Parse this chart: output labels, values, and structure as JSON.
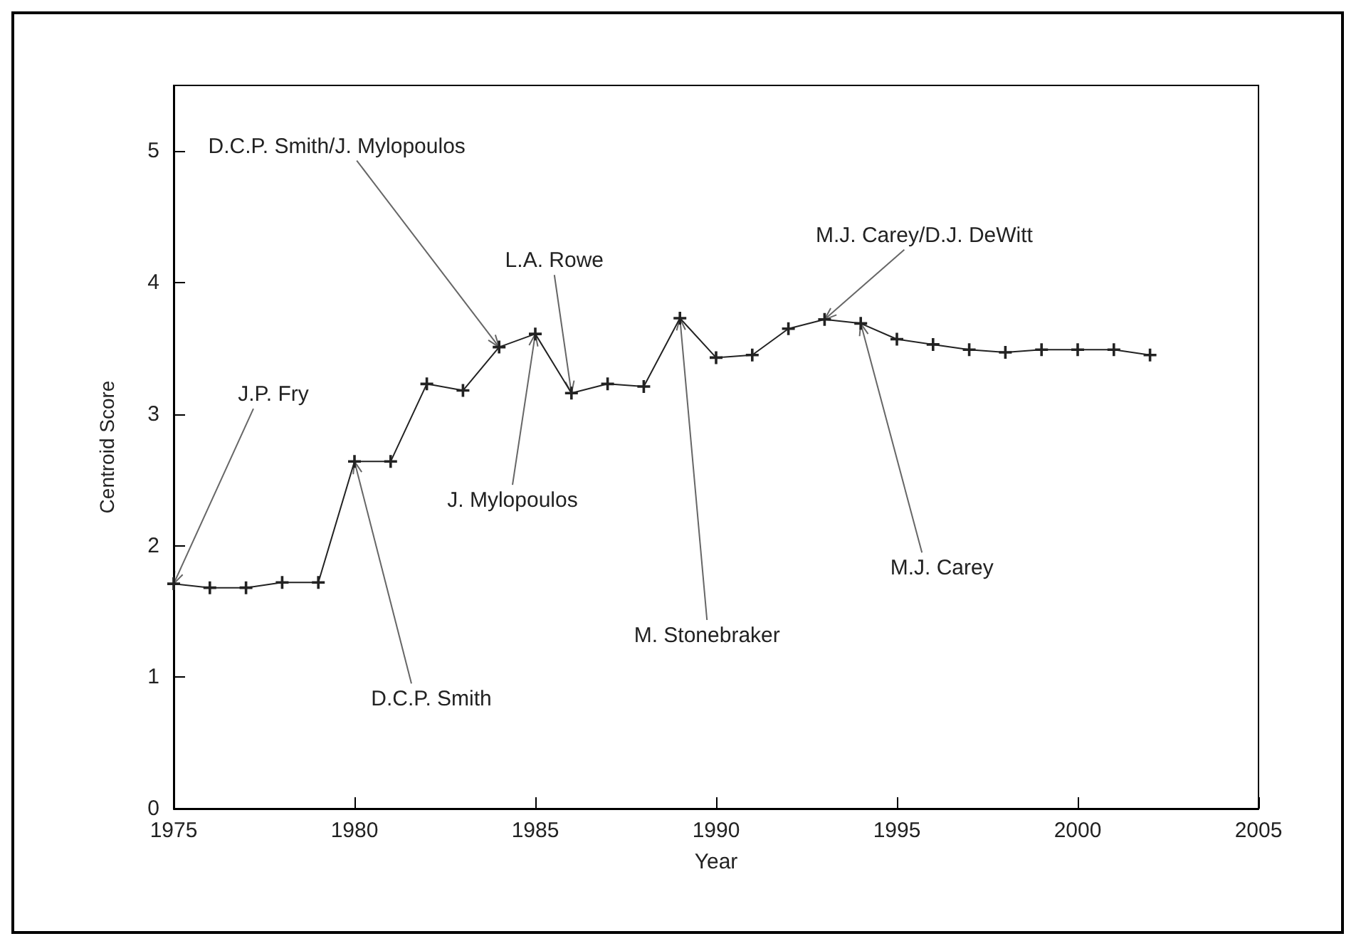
{
  "chart_data": {
    "type": "line",
    "xlabel": "Year",
    "ylabel": "Centroid Score",
    "x": [
      1975,
      1976,
      1977,
      1978,
      1979,
      1980,
      1981,
      1982,
      1983,
      1984,
      1985,
      1986,
      1987,
      1988,
      1989,
      1990,
      1991,
      1992,
      1993,
      1994,
      1995,
      1996,
      1997,
      1998,
      1999,
      2000,
      2001,
      2002
    ],
    "series": [
      {
        "color": "#222222",
        "values": [
          1.71,
          1.68,
          1.68,
          1.72,
          1.72,
          2.64,
          2.64,
          3.23,
          3.18,
          3.51,
          3.61,
          3.16,
          3.23,
          3.21,
          3.73,
          3.43,
          3.45,
          3.65,
          3.72,
          3.69,
          3.57,
          3.53,
          3.49,
          3.47,
          3.49,
          3.49,
          3.49,
          3.45
        ]
      }
    ],
    "xlim": [
      1975,
      2005
    ],
    "xticks": [
      1975,
      1980,
      1985,
      1990,
      1995,
      2000,
      2005
    ],
    "ylim": [
      0,
      5.5
    ],
    "yticks": [
      0,
      1,
      2,
      3,
      4,
      5
    ],
    "marker": "cross",
    "line_style": "solid",
    "annotations": [
      {
        "text": "J.P. Fry",
        "x": 1975,
        "y": 1.71
      },
      {
        "text": "D.C.P. Smith",
        "x": 1980,
        "y": 2.64
      },
      {
        "text": "D.C.P. Smith/J. Mylopoulos",
        "x": 1984,
        "y": 3.51
      },
      {
        "text": "J. Mylopoulos",
        "x": 1985,
        "y": 3.61
      },
      {
        "text": "L.A. Rowe",
        "x": 1986,
        "y": 3.16
      },
      {
        "text": "M. Stonebraker",
        "x": 1989,
        "y": 3.73
      },
      {
        "text": "M.J. Carey/D.J. DeWitt",
        "x": 1993,
        "y": 3.72
      },
      {
        "text": "M.J. Carey",
        "x": 1994,
        "y": 3.69
      }
    ]
  }
}
